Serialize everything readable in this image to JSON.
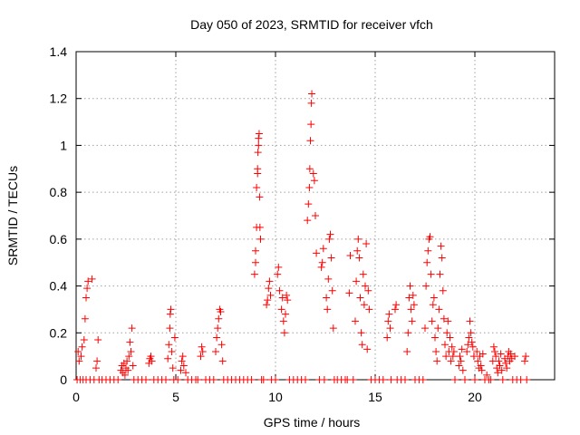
{
  "chart_data": {
    "type": "scatter",
    "title": "Day 050 of 2023, SRMTID for receiver vfch",
    "xlabel": "GPS time / hours",
    "ylabel": "SRMTID / TECUs",
    "xlim": [
      0,
      24
    ],
    "ylim": [
      0,
      1.4
    ],
    "xticks": [
      0,
      5,
      10,
      15,
      20
    ],
    "xtick_labels": [
      "0",
      "5",
      "10",
      "15",
      "20"
    ],
    "yticks": [
      0,
      0.2,
      0.4,
      0.6,
      0.8,
      1.0,
      1.2,
      1.4
    ],
    "ytick_labels": [
      "0",
      "0.2",
      "0.4",
      "0.6",
      "0.8",
      "1",
      "1.2",
      "1.4"
    ],
    "grid": true,
    "marker": "+",
    "color": "#ff0000",
    "series": [
      {
        "name": "SRMTID",
        "points": [
          [
            0.05,
            0.0
          ],
          [
            0.1,
            0.12
          ],
          [
            0.15,
            0.08
          ],
          [
            0.2,
            0.0
          ],
          [
            0.25,
            0.1
          ],
          [
            0.3,
            0.14
          ],
          [
            0.35,
            0.0
          ],
          [
            0.4,
            0.17
          ],
          [
            0.45,
            0.26
          ],
          [
            0.5,
            0.0
          ],
          [
            0.5,
            0.35
          ],
          [
            0.55,
            0.39
          ],
          [
            0.6,
            0.42
          ],
          [
            0.7,
            0.0
          ],
          [
            0.8,
            0.43
          ],
          [
            0.9,
            0.0
          ],
          [
            1.0,
            0.05
          ],
          [
            1.05,
            0.08
          ],
          [
            1.1,
            0.17
          ],
          [
            1.15,
            0.0
          ],
          [
            1.3,
            0.0
          ],
          [
            1.5,
            0.0
          ],
          [
            1.7,
            0.0
          ],
          [
            1.9,
            0.0
          ],
          [
            2.1,
            0.0
          ],
          [
            2.25,
            0.04
          ],
          [
            2.3,
            0.06
          ],
          [
            2.35,
            0.03
          ],
          [
            2.4,
            0.07
          ],
          [
            2.45,
            0.02
          ],
          [
            2.5,
            0.05
          ],
          [
            2.55,
            0.08
          ],
          [
            2.6,
            0.04
          ],
          [
            2.65,
            0.1
          ],
          [
            2.7,
            0.16
          ],
          [
            2.75,
            0.12
          ],
          [
            2.8,
            0.22
          ],
          [
            2.85,
            0.06
          ],
          [
            2.9,
            0.0
          ],
          [
            3.1,
            0.0
          ],
          [
            3.3,
            0.0
          ],
          [
            3.5,
            0.0
          ],
          [
            3.65,
            0.07
          ],
          [
            3.7,
            0.09
          ],
          [
            3.75,
            0.1
          ],
          [
            3.8,
            0.08
          ],
          [
            3.9,
            0.0
          ],
          [
            4.1,
            0.0
          ],
          [
            4.3,
            0.0
          ],
          [
            4.5,
            0.0
          ],
          [
            4.6,
            0.09
          ],
          [
            4.65,
            0.15
          ],
          [
            4.7,
            0.22
          ],
          [
            4.72,
            0.28
          ],
          [
            4.75,
            0.3
          ],
          [
            4.8,
            0.12
          ],
          [
            4.85,
            0.05
          ],
          [
            4.9,
            0.0
          ],
          [
            4.95,
            0.18
          ],
          [
            5.1,
            0.0
          ],
          [
            5.25,
            0.04
          ],
          [
            5.3,
            0.08
          ],
          [
            5.35,
            0.1
          ],
          [
            5.4,
            0.06
          ],
          [
            5.5,
            0.03
          ],
          [
            5.6,
            0.0
          ],
          [
            5.8,
            0.0
          ],
          [
            6.0,
            0.0
          ],
          [
            6.1,
            0.0
          ],
          [
            6.25,
            0.1
          ],
          [
            6.3,
            0.14
          ],
          [
            6.35,
            0.12
          ],
          [
            6.5,
            0.0
          ],
          [
            6.7,
            0.0
          ],
          [
            6.9,
            0.0
          ],
          [
            7.0,
            0.12
          ],
          [
            7.05,
            0.18
          ],
          [
            7.1,
            0.22
          ],
          [
            7.15,
            0.26
          ],
          [
            7.2,
            0.3
          ],
          [
            7.25,
            0.29
          ],
          [
            7.3,
            0.15
          ],
          [
            7.35,
            0.08
          ],
          [
            7.4,
            0.0
          ],
          [
            7.6,
            0.0
          ],
          [
            7.8,
            0.0
          ],
          [
            8.0,
            0.0
          ],
          [
            8.2,
            0.0
          ],
          [
            8.4,
            0.0
          ],
          [
            8.6,
            0.0
          ],
          [
            8.8,
            0.0
          ],
          [
            8.95,
            0.45
          ],
          [
            9.0,
            0.5
          ],
          [
            9.0,
            0.55
          ],
          [
            9.05,
            0.65
          ],
          [
            9.05,
            0.82
          ],
          [
            9.1,
            0.88
          ],
          [
            9.1,
            0.9
          ],
          [
            9.12,
            0.97
          ],
          [
            9.15,
            1.0
          ],
          [
            9.15,
            1.03
          ],
          [
            9.18,
            1.05
          ],
          [
            9.2,
            0.78
          ],
          [
            9.22,
            0.65
          ],
          [
            9.25,
            0.6
          ],
          [
            9.3,
            0.0
          ],
          [
            9.4,
            0.0
          ],
          [
            9.55,
            0.32
          ],
          [
            9.6,
            0.34
          ],
          [
            9.65,
            0.39
          ],
          [
            9.7,
            0.42
          ],
          [
            9.75,
            0.36
          ],
          [
            9.8,
            0.0
          ],
          [
            10.0,
            0.0
          ],
          [
            10.1,
            0.45
          ],
          [
            10.15,
            0.48
          ],
          [
            10.2,
            0.38
          ],
          [
            10.3,
            0.3
          ],
          [
            10.35,
            0.35
          ],
          [
            10.4,
            0.25
          ],
          [
            10.45,
            0.2
          ],
          [
            10.5,
            0.28
          ],
          [
            10.55,
            0.36
          ],
          [
            10.6,
            0.34
          ],
          [
            10.7,
            0.0
          ],
          [
            10.9,
            0.0
          ],
          [
            11.1,
            0.0
          ],
          [
            11.3,
            0.0
          ],
          [
            11.5,
            0.0
          ],
          [
            11.6,
            0.68
          ],
          [
            11.65,
            0.75
          ],
          [
            11.7,
            0.82
          ],
          [
            11.72,
            0.9
          ],
          [
            11.75,
            1.02
          ],
          [
            11.78,
            1.09
          ],
          [
            11.8,
            1.18
          ],
          [
            11.82,
            1.22
          ],
          [
            11.9,
            0.88
          ],
          [
            11.95,
            0.85
          ],
          [
            12.0,
            0.7
          ],
          [
            12.05,
            0.54
          ],
          [
            12.2,
            0.0
          ],
          [
            12.3,
            0.48
          ],
          [
            12.35,
            0.5
          ],
          [
            12.4,
            0.56
          ],
          [
            12.45,
            0.0
          ],
          [
            12.55,
            0.35
          ],
          [
            12.6,
            0.3
          ],
          [
            12.65,
            0.43
          ],
          [
            12.7,
            0.6
          ],
          [
            12.75,
            0.62
          ],
          [
            12.8,
            0.52
          ],
          [
            12.85,
            0.38
          ],
          [
            12.9,
            0.22
          ],
          [
            12.95,
            0.0
          ],
          [
            13.1,
            0.0
          ],
          [
            13.3,
            0.0
          ],
          [
            13.5,
            0.0
          ],
          [
            13.6,
            0.0
          ],
          [
            13.7,
            0.37
          ],
          [
            13.75,
            0.53
          ],
          [
            13.9,
            0.0
          ],
          [
            14.0,
            0.25
          ],
          [
            14.05,
            0.42
          ],
          [
            14.1,
            0.55
          ],
          [
            14.15,
            0.6
          ],
          [
            14.2,
            0.52
          ],
          [
            14.25,
            0.35
          ],
          [
            14.3,
            0.2
          ],
          [
            14.35,
            0.15
          ],
          [
            14.4,
            0.45
          ],
          [
            14.45,
            0.32
          ],
          [
            14.5,
            0.4
          ],
          [
            14.55,
            0.58
          ],
          [
            14.6,
            0.13
          ],
          [
            14.65,
            0.38
          ],
          [
            14.7,
            0.3
          ],
          [
            14.8,
            0.0
          ],
          [
            15.0,
            0.0
          ],
          [
            15.2,
            0.0
          ],
          [
            15.4,
            0.0
          ],
          [
            15.6,
            0.18
          ],
          [
            15.65,
            0.25
          ],
          [
            15.7,
            0.28
          ],
          [
            15.75,
            0.22
          ],
          [
            15.8,
            0.0
          ],
          [
            16.0,
            0.3
          ],
          [
            16.05,
            0.32
          ],
          [
            16.1,
            0.0
          ],
          [
            16.3,
            0.0
          ],
          [
            16.5,
            0.0
          ],
          [
            16.6,
            0.12
          ],
          [
            16.65,
            0.2
          ],
          [
            16.7,
            0.35
          ],
          [
            16.75,
            0.4
          ],
          [
            16.8,
            0.3
          ],
          [
            16.85,
            0.25
          ],
          [
            16.9,
            0.36
          ],
          [
            16.95,
            0.32
          ],
          [
            17.0,
            0.0
          ],
          [
            17.2,
            0.0
          ],
          [
            17.4,
            0.0
          ],
          [
            17.5,
            0.22
          ],
          [
            17.55,
            0.4
          ],
          [
            17.6,
            0.5
          ],
          [
            17.65,
            0.55
          ],
          [
            17.7,
            0.6
          ],
          [
            17.75,
            0.61
          ],
          [
            17.8,
            0.45
          ],
          [
            17.85,
            0.25
          ],
          [
            17.9,
            0.32
          ],
          [
            17.95,
            0.35
          ],
          [
            18.0,
            0.18
          ],
          [
            18.05,
            0.12
          ],
          [
            18.1,
            0.08
          ],
          [
            18.15,
            0.22
          ],
          [
            18.2,
            0.3
          ],
          [
            18.25,
            0.45
          ],
          [
            18.3,
            0.57
          ],
          [
            18.35,
            0.52
          ],
          [
            18.4,
            0.38
          ],
          [
            18.45,
            0.26
          ],
          [
            18.5,
            0.15
          ],
          [
            18.55,
            0.1
          ],
          [
            18.6,
            0.2
          ],
          [
            18.65,
            0.25
          ],
          [
            18.7,
            0.12
          ],
          [
            18.75,
            0.18
          ],
          [
            18.8,
            0.08
          ],
          [
            18.85,
            0.14
          ],
          [
            18.9,
            0.1
          ],
          [
            18.95,
            0.12
          ],
          [
            19.0,
            0.0
          ],
          [
            19.2,
            0.06
          ],
          [
            19.25,
            0.1
          ],
          [
            19.3,
            0.08
          ],
          [
            19.35,
            0.13
          ],
          [
            19.4,
            0.04
          ],
          [
            19.5,
            0.0
          ],
          [
            19.6,
            0.12
          ],
          [
            19.65,
            0.15
          ],
          [
            19.7,
            0.18
          ],
          [
            19.75,
            0.25
          ],
          [
            19.8,
            0.2
          ],
          [
            19.85,
            0.16
          ],
          [
            19.9,
            0.14
          ],
          [
            19.95,
            0.1
          ],
          [
            20.0,
            0.0
          ],
          [
            20.1,
            0.12
          ],
          [
            20.15,
            0.08
          ],
          [
            20.2,
            0.05
          ],
          [
            20.25,
            0.1
          ],
          [
            20.3,
            0.06
          ],
          [
            20.35,
            0.04
          ],
          [
            20.4,
            0.11
          ],
          [
            20.5,
            0.0
          ],
          [
            20.6,
            0.02
          ],
          [
            20.7,
            0.0
          ],
          [
            20.8,
            0.0
          ],
          [
            20.9,
            0.08
          ],
          [
            20.95,
            0.14
          ],
          [
            21.0,
            0.12
          ],
          [
            21.05,
            0.1
          ],
          [
            21.1,
            0.05
          ],
          [
            21.15,
            0.03
          ],
          [
            21.2,
            0.08
          ],
          [
            21.25,
            0.06
          ],
          [
            21.3,
            0.11
          ],
          [
            21.35,
            0.04
          ],
          [
            21.4,
            0.0
          ],
          [
            21.5,
            0.09
          ],
          [
            21.55,
            0.07
          ],
          [
            21.6,
            0.05
          ],
          [
            21.65,
            0.1
          ],
          [
            21.7,
            0.12
          ],
          [
            21.75,
            0.08
          ],
          [
            21.8,
            0.11
          ],
          [
            21.85,
            0.09
          ],
          [
            21.9,
            0.0
          ],
          [
            22.0,
            0.1
          ],
          [
            22.1,
            0.0
          ],
          [
            22.3,
            0.0
          ],
          [
            22.5,
            0.08
          ],
          [
            22.55,
            0.1
          ],
          [
            22.6,
            0.0
          ]
        ]
      }
    ]
  }
}
